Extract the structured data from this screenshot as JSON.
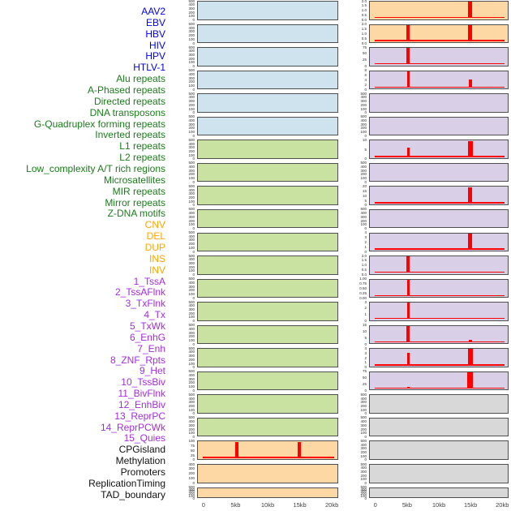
{
  "chart_data": {
    "type": "area",
    "title": "",
    "description": "44 genomic annotation signal tracks over a 0-20kb window; left label legend plus two columns of 22 panels; red signal density per track",
    "x": {
      "ticks": [
        "0",
        "5kb",
        "10kb",
        "15kb",
        "20kb"
      ],
      "tick_kb": [
        0,
        5,
        10,
        15,
        20
      ],
      "range_kb": [
        0,
        20
      ]
    },
    "legend_label_colors": {
      "virus": "#0000ee",
      "repeat": "#1a7d1a",
      "sv": "#ffa500",
      "chromhmm": "#a52ce0",
      "feature": "#111111"
    },
    "panel_colors": {
      "virus": "#cfe3ee",
      "repeat": "#c9e2a2",
      "sv": "#fdd8a5",
      "chromhmm": "#d9d0e8",
      "feature": "#d8d8d8"
    },
    "signal_color": "#ff0000",
    "layout_note": "tracks 1-22 rendered in left plot column top-to-bottom, tracks 23-44 in right plot column; spike h is fraction of panel height",
    "tracks": [
      {
        "label": "AAV2",
        "group": "virus",
        "yticks": [
          "500",
          "400",
          "300",
          "200",
          "100",
          "0"
        ],
        "baseline": false,
        "spikes": []
      },
      {
        "label": "EBV",
        "group": "virus",
        "yticks": [
          "500",
          "400",
          "300",
          "200",
          "100",
          "0"
        ],
        "baseline": false,
        "spikes": []
      },
      {
        "label": "HBV",
        "group": "virus",
        "yticks": [
          "500",
          "400",
          "300",
          "200",
          "100",
          "0"
        ],
        "baseline": false,
        "spikes": []
      },
      {
        "label": "HIV",
        "group": "virus",
        "yticks": [
          "500",
          "400",
          "300",
          "200",
          "100",
          "0"
        ],
        "baseline": false,
        "spikes": []
      },
      {
        "label": "HPV",
        "group": "virus",
        "yticks": [
          "500",
          "400",
          "300",
          "200",
          "100",
          "0"
        ],
        "baseline": false,
        "spikes": []
      },
      {
        "label": "HTLV-1",
        "group": "virus",
        "yticks": [
          "500",
          "400",
          "300",
          "200",
          "100",
          "0"
        ],
        "baseline": false,
        "spikes": []
      },
      {
        "label": "Alu repeats",
        "group": "repeat",
        "yticks": [
          "500",
          "400",
          "300",
          "200",
          "100",
          "0"
        ],
        "baseline": false,
        "spikes": []
      },
      {
        "label": "A-Phased repeats",
        "group": "repeat",
        "yticks": [
          "500",
          "400",
          "300",
          "200",
          "100",
          "0"
        ],
        "baseline": false,
        "spikes": []
      },
      {
        "label": "Directed repeats",
        "group": "repeat",
        "yticks": [
          "500",
          "400",
          "300",
          "200",
          "100",
          "0"
        ],
        "baseline": false,
        "spikes": []
      },
      {
        "label": "DNA transposons",
        "group": "repeat",
        "yticks": [
          "500",
          "400",
          "300",
          "200",
          "100",
          "0"
        ],
        "baseline": false,
        "spikes": []
      },
      {
        "label": "G-Quadruplex forming repeats",
        "group": "repeat",
        "yticks": [
          "500",
          "400",
          "300",
          "200",
          "100",
          "0"
        ],
        "baseline": false,
        "spikes": []
      },
      {
        "label": "Inverted repeats",
        "group": "repeat",
        "yticks": [
          "500",
          "400",
          "300",
          "200",
          "100",
          "0"
        ],
        "baseline": false,
        "spikes": []
      },
      {
        "label": "L1 repeats",
        "group": "repeat",
        "yticks": [
          "500",
          "400",
          "300",
          "200",
          "100",
          "0"
        ],
        "baseline": false,
        "spikes": []
      },
      {
        "label": "L2 repeats",
        "group": "repeat",
        "yticks": [
          "500",
          "400",
          "300",
          "200",
          "100",
          "0"
        ],
        "baseline": false,
        "spikes": []
      },
      {
        "label": "Low_complexity A/T rich regions",
        "group": "repeat",
        "yticks": [
          "500",
          "400",
          "300",
          "200",
          "100",
          "0"
        ],
        "baseline": false,
        "spikes": []
      },
      {
        "label": "Microsatellites",
        "group": "repeat",
        "yticks": [
          "500",
          "400",
          "300",
          "200",
          "100",
          "0"
        ],
        "baseline": false,
        "spikes": []
      },
      {
        "label": "MIR repeats",
        "group": "repeat",
        "yticks": [
          "500",
          "400",
          "300",
          "200",
          "100",
          "0"
        ],
        "baseline": false,
        "spikes": []
      },
      {
        "label": "Mirror repeats",
        "group": "repeat",
        "yticks": [
          "500",
          "400",
          "300",
          "200",
          "100",
          "0"
        ],
        "baseline": false,
        "spikes": []
      },
      {
        "label": "Z-DNA motifs",
        "group": "repeat",
        "yticks": [
          "500",
          "400",
          "300",
          "200",
          "100",
          "0"
        ],
        "baseline": false,
        "spikes": []
      },
      {
        "label": "CNV",
        "group": "sv",
        "yticks": [
          "100",
          "75",
          "50",
          "25",
          "0"
        ],
        "baseline": true,
        "spikes": [
          {
            "kb": 5.05,
            "h": 1,
            "w": 4
          },
          {
            "kb": 14.85,
            "h": 1,
            "w": 4
          }
        ]
      },
      {
        "label": "DEL",
        "group": "sv",
        "yticks": [
          "400",
          "300",
          "200",
          "100",
          "0"
        ],
        "baseline": false,
        "spikes": []
      },
      {
        "label": "DUP",
        "group": "sv",
        "yticks": [
          "500",
          "400",
          "300",
          "200",
          "100",
          "0"
        ],
        "baseline": false,
        "spikes": []
      },
      {
        "label": "INS",
        "group": "sv",
        "yticks": [
          "2.0",
          "1.5",
          "1.0",
          "0.5",
          "0.0"
        ],
        "baseline": true,
        "spikes": [
          {
            "kb": 14.85,
            "h": 1,
            "w": 5
          }
        ]
      },
      {
        "label": "INV",
        "group": "sv",
        "yticks": [
          "2.0",
          "1.5",
          "1.0",
          "0.5",
          "0.0"
        ],
        "baseline": true,
        "spikes": [
          {
            "kb": 5.05,
            "h": 1,
            "w": 4
          },
          {
            "kb": 14.85,
            "h": 1,
            "w": 5
          }
        ]
      },
      {
        "label": "1_TssA",
        "group": "chromhmm",
        "yticks": [
          "75",
          "50",
          "25",
          "0"
        ],
        "baseline": true,
        "spikes": [
          {
            "kb": 5.05,
            "h": 1,
            "w": 4
          },
          {
            "kb": 14.85,
            "h": 0.08,
            "w": 4
          }
        ]
      },
      {
        "label": "2_TssAFlnk",
        "group": "chromhmm",
        "yticks": [
          "8",
          "6",
          "4",
          "2",
          "0"
        ],
        "baseline": true,
        "spikes": [
          {
            "kb": 5.05,
            "h": 1,
            "w": 3
          },
          {
            "kb": 14.85,
            "h": 0.45,
            "w": 4
          }
        ]
      },
      {
        "label": "3_TxFlnk",
        "group": "chromhmm",
        "yticks": [
          "500",
          "400",
          "300",
          "200",
          "100",
          "0"
        ],
        "baseline": false,
        "spikes": []
      },
      {
        "label": "4_Tx",
        "group": "chromhmm",
        "yticks": [
          "500",
          "400",
          "300",
          "200",
          "100",
          "0"
        ],
        "baseline": false,
        "spikes": []
      },
      {
        "label": "5_TxWk",
        "group": "chromhmm",
        "yticks": [
          "10",
          "5",
          "0"
        ],
        "baseline": true,
        "spikes": [
          {
            "kb": 5.05,
            "h": 0.55,
            "w": 3
          },
          {
            "kb": 14.85,
            "h": 1,
            "w": 6
          }
        ]
      },
      {
        "label": "6_EnhG",
        "group": "chromhmm",
        "yticks": [
          "500",
          "400",
          "300",
          "200",
          "100",
          "0"
        ],
        "baseline": false,
        "spikes": []
      },
      {
        "label": "7_Enh",
        "group": "chromhmm",
        "yticks": [
          "20",
          "15",
          "10",
          "5",
          "0"
        ],
        "baseline": true,
        "spikes": [
          {
            "kb": 14.55,
            "h": 0.6,
            "w": 2
          },
          {
            "kb": 14.85,
            "h": 1,
            "w": 5
          }
        ]
      },
      {
        "label": "8_ZNF_Rpts",
        "group": "chromhmm",
        "yticks": [
          "500",
          "400",
          "300",
          "200",
          "100",
          "0"
        ],
        "baseline": false,
        "spikes": []
      },
      {
        "label": "9_Het",
        "group": "chromhmm",
        "yticks": [
          "4",
          "3",
          "2",
          "1",
          "0"
        ],
        "baseline": true,
        "spikes": [
          {
            "kb": 14.85,
            "h": 1,
            "w": 5
          }
        ]
      },
      {
        "label": "10_TssBiv",
        "group": "chromhmm",
        "yticks": [
          "2.0",
          "1.5",
          "1.0",
          "0.5",
          "0.0"
        ],
        "baseline": true,
        "spikes": [
          {
            "kb": 5.05,
            "h": 1,
            "w": 4
          }
        ]
      },
      {
        "label": "11_BivFlnk",
        "group": "chromhmm",
        "yticks": [
          "1.00",
          "0.75",
          "0.50",
          "0.25",
          "0.00"
        ],
        "baseline": true,
        "spikes": [
          {
            "kb": 5.05,
            "h": 1,
            "w": 3
          }
        ]
      },
      {
        "label": "12_EnhBiv",
        "group": "chromhmm",
        "yticks": [
          "3",
          "2",
          "1",
          "0"
        ],
        "baseline": true,
        "spikes": [
          {
            "kb": 5.05,
            "h": 1,
            "w": 3
          }
        ]
      },
      {
        "label": "13_ReprPC",
        "group": "chromhmm",
        "yticks": [
          "15",
          "10",
          "5",
          "0"
        ],
        "baseline": true,
        "spikes": [
          {
            "kb": 5.05,
            "h": 1,
            "w": 4
          },
          {
            "kb": 14.85,
            "h": 0.15,
            "w": 4
          }
        ]
      },
      {
        "label": "14_ReprPCWk",
        "group": "chromhmm",
        "yticks": [
          "4",
          "3",
          "2",
          "1",
          "0"
        ],
        "baseline": true,
        "spikes": [
          {
            "kb": 5.05,
            "h": 0.75,
            "w": 3
          },
          {
            "kb": 14.85,
            "h": 1,
            "w": 6
          }
        ]
      },
      {
        "label": "15_Quies",
        "group": "chromhmm",
        "yticks": [
          "75",
          "50",
          "25",
          "0"
        ],
        "baseline": true,
        "spikes": [
          {
            "kb": 5.05,
            "h": 0.1,
            "w": 3
          },
          {
            "kb": 14.85,
            "h": 1,
            "w": 7
          }
        ]
      },
      {
        "label": "CPGisland",
        "group": "feature",
        "yticks": [
          "500",
          "400",
          "300",
          "200",
          "100",
          "0"
        ],
        "baseline": false,
        "spikes": []
      },
      {
        "label": "Methylation",
        "group": "feature",
        "yticks": [
          "500",
          "400",
          "300",
          "200",
          "100",
          "0"
        ],
        "baseline": false,
        "spikes": []
      },
      {
        "label": "Promoters",
        "group": "feature",
        "yticks": [
          "500",
          "400",
          "300",
          "200",
          "100",
          "0"
        ],
        "baseline": false,
        "spikes": []
      },
      {
        "label": "ReplicationTiming",
        "group": "feature",
        "yticks": [
          "500",
          "400",
          "300",
          "200",
          "100",
          "0"
        ],
        "baseline": false,
        "spikes": []
      },
      {
        "label": "TAD_boundary",
        "group": "feature",
        "yticks": [
          "500",
          "400",
          "300",
          "200",
          "100",
          "0"
        ],
        "baseline": false,
        "spikes": []
      }
    ]
  }
}
